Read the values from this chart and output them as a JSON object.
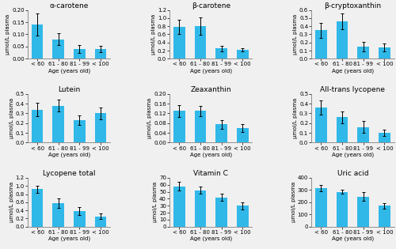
{
  "subplots": [
    {
      "title": "α-carotene",
      "ylabel": "μmol/L plasma",
      "xlabel": "Age (years old)",
      "categories": [
        "< 60",
        "61 - 80",
        "81 - 99",
        "< 100"
      ],
      "values": [
        0.14,
        0.08,
        0.04,
        0.04
      ],
      "errors": [
        0.045,
        0.025,
        0.015,
        0.012
      ],
      "ylim": [
        0,
        0.2
      ],
      "yticks": [
        0,
        0.05,
        0.1,
        0.15,
        0.2
      ]
    },
    {
      "title": "β-carotene",
      "ylabel": "μmol/L plasma",
      "xlabel": "Age (years old)",
      "categories": [
        "< 60",
        "61 - 80",
        "81 - 99",
        "< 100"
      ],
      "values": [
        0.78,
        0.8,
        0.25,
        0.22
      ],
      "errors": [
        0.18,
        0.22,
        0.06,
        0.04
      ],
      "ylim": [
        0,
        1.2
      ],
      "yticks": [
        0,
        0.2,
        0.4,
        0.6,
        0.8,
        1.0,
        1.2
      ]
    },
    {
      "title": "β-cryptoxanthin",
      "ylabel": "μmol/L plasma",
      "xlabel": "Age (years old)",
      "categories": [
        "< 60",
        "61 - 80",
        "81 - 99",
        "< 100"
      ],
      "values": [
        0.35,
        0.46,
        0.15,
        0.14
      ],
      "errors": [
        0.09,
        0.1,
        0.06,
        0.05
      ],
      "ylim": [
        0,
        0.6
      ],
      "yticks": [
        0,
        0.1,
        0.2,
        0.3,
        0.4,
        0.5,
        0.6
      ]
    },
    {
      "title": "Lutein",
      "ylabel": "μmol/L plasma",
      "xlabel": "Age (years old)",
      "categories": [
        "< 60",
        "61 - 80",
        "81 - 99",
        "< 100"
      ],
      "values": [
        0.34,
        0.38,
        0.23,
        0.3
      ],
      "errors": [
        0.07,
        0.06,
        0.05,
        0.06
      ],
      "ylim": [
        0,
        0.5
      ],
      "yticks": [
        0,
        0.1,
        0.2,
        0.3,
        0.4,
        0.5
      ]
    },
    {
      "title": "Zeaxanthin",
      "ylabel": "μmol/L plasma",
      "xlabel": "Age (years old)",
      "categories": [
        "< 60",
        "61 - 80",
        "81 - 99",
        "< 100"
      ],
      "values": [
        0.13,
        0.13,
        0.075,
        0.06
      ],
      "errors": [
        0.025,
        0.02,
        0.018,
        0.015
      ],
      "ylim": [
        0,
        0.2
      ],
      "yticks": [
        0,
        0.04,
        0.08,
        0.12,
        0.16,
        0.2
      ]
    },
    {
      "title": "All-trans lycopene",
      "ylabel": "μmol/L plasma",
      "xlabel": "Age (years old)",
      "categories": [
        "< 60",
        "61 - 80",
        "81 - 99",
        "< 100"
      ],
      "values": [
        0.36,
        0.26,
        0.16,
        0.1
      ],
      "errors": [
        0.07,
        0.06,
        0.06,
        0.03
      ],
      "ylim": [
        0,
        0.5
      ],
      "yticks": [
        0,
        0.1,
        0.2,
        0.3,
        0.4,
        0.5
      ]
    },
    {
      "title": "Lycopene total",
      "ylabel": "μmol/L plasma",
      "xlabel": "Age (years old)",
      "categories": [
        "< 60",
        "61 - 80",
        "81 - 99",
        "< 100"
      ],
      "values": [
        0.92,
        0.58,
        0.38,
        0.25
      ],
      "errors": [
        0.09,
        0.12,
        0.1,
        0.07
      ],
      "ylim": [
        0,
        1.2
      ],
      "yticks": [
        0,
        0.2,
        0.4,
        0.6,
        0.8,
        1.0,
        1.2
      ]
    },
    {
      "title": "Vitamin C",
      "ylabel": "μmol/L plasma",
      "xlabel": "Age (years old)",
      "categories": [
        "< 60",
        "61 - 80",
        "81 - 99",
        "< 100"
      ],
      "values": [
        58,
        52,
        42,
        30
      ],
      "errors": [
        6,
        5,
        5,
        5
      ],
      "ylim": [
        0,
        70
      ],
      "yticks": [
        0,
        10,
        20,
        30,
        40,
        50,
        60,
        70
      ]
    },
    {
      "title": "Uric acid",
      "ylabel": "μmol/L plasma",
      "xlabel": "Age (years old)",
      "categories": [
        "< 60",
        "61 - 80",
        "81 - 99",
        "< 100"
      ],
      "values": [
        315,
        285,
        245,
        170
      ],
      "errors": [
        25,
        18,
        35,
        25
      ],
      "ylim": [
        0,
        400
      ],
      "yticks": [
        0,
        100,
        200,
        300,
        400
      ]
    }
  ],
  "bar_color": "#30B8E8",
  "error_color": "black",
  "bar_width": 0.55,
  "title_fontsize": 6.5,
  "label_fontsize": 5.0,
  "tick_fontsize": 5.0,
  "bg_color": "#f0f0f0"
}
